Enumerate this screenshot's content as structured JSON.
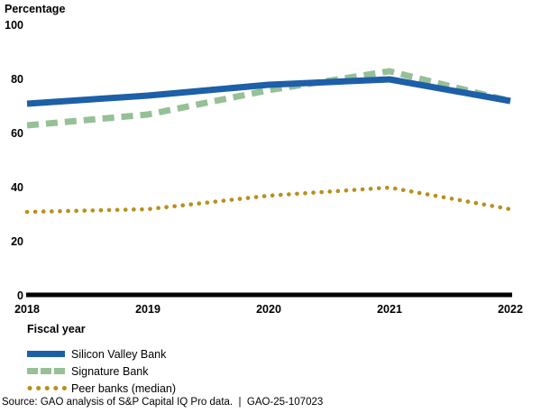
{
  "chart_data": {
    "type": "line",
    "title": "",
    "ylabel": "Percentage",
    "xlabel": "Fiscal year",
    "categories": [
      "2018",
      "2019",
      "2020",
      "2021",
      "2022"
    ],
    "yticks": [
      0,
      20,
      40,
      60,
      80,
      100
    ],
    "ylim": [
      0,
      100
    ],
    "grid": false,
    "legend_position": "below-left",
    "axis_color": "#000000",
    "series": [
      {
        "name": "Silicon Valley Bank",
        "style": "solid",
        "color": "#1d5fa8",
        "values": [
          71,
          74,
          78,
          80,
          72
        ]
      },
      {
        "name": "Signature Bank",
        "style": "dashed",
        "color": "#96c096",
        "values": [
          63,
          67,
          76,
          83,
          72
        ]
      },
      {
        "name": "Peer banks (median)",
        "style": "dotted",
        "color": "#b9901e",
        "values": [
          31,
          32,
          37,
          40,
          32
        ]
      }
    ]
  },
  "source_line": "Source: GAO analysis of S&P Capital IQ Pro data.  |  GAO-25-107023"
}
